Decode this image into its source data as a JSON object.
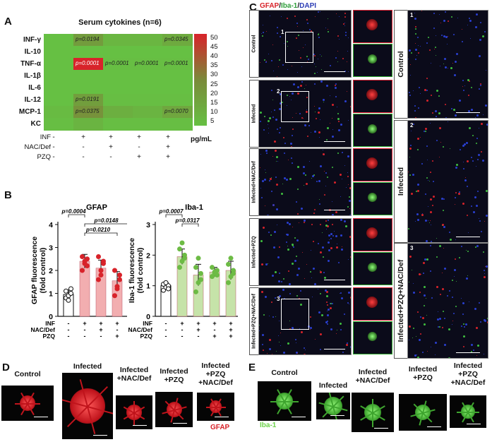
{
  "panel_letters": {
    "a": "A",
    "b": "B",
    "c": "C",
    "d": "D",
    "e": "E"
  },
  "panel_a": {
    "title": "Serum cytokines (n=6)",
    "rows": [
      "INF-γ",
      "IL-10",
      "TNF-α",
      "IL-1β",
      "IL-6",
      "IL-12",
      "MCP-1",
      "KC"
    ],
    "condition_labels": [
      "INF",
      "NAC/Def",
      "PZQ"
    ],
    "condition_values": [
      [
        "-",
        "+",
        "+",
        "+",
        "+"
      ],
      [
        "-",
        "-",
        "+",
        "-",
        "+"
      ],
      [
        "-",
        "-",
        "-",
        "+",
        "+"
      ]
    ],
    "p_values": [
      {
        "row": 0,
        "col": 1,
        "text": "p=0.0194"
      },
      {
        "row": 0,
        "col": 4,
        "text": "p=0.0345"
      },
      {
        "row": 2,
        "col": 1,
        "text": "p=0.0001"
      },
      {
        "row": 2,
        "col": 2,
        "text": "p=0.0001"
      },
      {
        "row": 2,
        "col": 3,
        "text": "p=0.0001"
      },
      {
        "row": 2,
        "col": 4,
        "text": "p=0.0001"
      },
      {
        "row": 5,
        "col": 1,
        "text": "p=0.0191"
      },
      {
        "row": 6,
        "col": 1,
        "text": "p=0.0375"
      },
      {
        "row": 6,
        "col": 4,
        "text": "p=0.0070"
      }
    ],
    "colorbar_ticks": [
      "50",
      "45",
      "40",
      "35",
      "30",
      "25",
      "20",
      "15",
      "10",
      "5"
    ],
    "colorbar_unit": "pg/mL",
    "colors": {
      "low": "#66c043",
      "high": "#d8232a"
    }
  },
  "chart_data": [
    {
      "type": "heatmap",
      "title": "Serum cytokines (n=6)",
      "rows": [
        "INF-γ",
        "IL-10",
        "TNF-α",
        "IL-1β",
        "IL-6",
        "IL-12",
        "MCP-1",
        "KC"
      ],
      "columns": [
        "Control",
        "Infected",
        "Infected+NAC/Def",
        "Infected+PZQ",
        "Infected+PZQ+NAC/Def"
      ],
      "values": [
        [
          5,
          20,
          9,
          9,
          14
        ],
        [
          3,
          3,
          3,
          3,
          3
        ],
        [
          3,
          52,
          6,
          6,
          6
        ],
        [
          3,
          3,
          3,
          3,
          3
        ],
        [
          3,
          3,
          3,
          3,
          3
        ],
        [
          5,
          19,
          6,
          6,
          6
        ],
        [
          7,
          24,
          12,
          10,
          16
        ],
        [
          6,
          10,
          6,
          6,
          6
        ]
      ],
      "colorbar_range": [
        5,
        50
      ],
      "colorbar_unit": "pg/mL"
    },
    {
      "type": "bar",
      "title": "GFAP",
      "ylabel": "GFAP fluorescence\n(fold control)",
      "ylim": [
        0,
        4
      ],
      "yticks": [
        "0",
        "1",
        "2",
        "3",
        "4"
      ],
      "values": [
        0.95,
        2.4,
        2.1,
        1.55,
        1.5
      ],
      "errors": [
        0.2,
        0.3,
        0.35,
        0.4,
        0.3
      ],
      "points": [
        [
          0.8,
          0.9,
          1.0,
          1.1,
          0.7,
          1.2
        ],
        [
          2.0,
          2.3,
          2.5,
          2.6,
          2.4,
          2.2
        ],
        [
          1.6,
          2.0,
          2.4,
          2.6,
          1.8,
          2.3
        ],
        [
          0.9,
          1.3,
          1.6,
          2.0,
          1.2,
          1.8
        ],
        [
          1.2,
          1.4,
          1.6,
          1.8,
          1.3,
          1.5
        ]
      ],
      "comparisons": [
        {
          "from": 0,
          "to": 1,
          "label": "p=0.0004"
        },
        {
          "from": 1,
          "to": 4,
          "label": "p=0.0148"
        },
        {
          "from": 1,
          "to": 3,
          "label": "p=0.0210"
        }
      ],
      "colors": [
        "#ffffff",
        "#f2aeb0",
        "#f2aeb0",
        "#f2aeb0",
        "#f2aeb0"
      ],
      "point_colors": [
        "#111111",
        "#d8232a",
        "#d8232a",
        "#d8232a",
        "#d8232a"
      ]
    },
    {
      "type": "bar",
      "title": "Iba-1",
      "ylabel": "Iba-1 fluorescence\n(fold control)",
      "ylim": [
        0,
        3
      ],
      "yticks": [
        "0",
        "1",
        "2",
        "3"
      ],
      "values": [
        1.0,
        1.95,
        1.35,
        1.45,
        1.5
      ],
      "errors": [
        0.1,
        0.25,
        0.35,
        0.15,
        0.3
      ],
      "points": [
        [
          0.85,
          0.95,
          1.0,
          1.05,
          1.1,
          0.9
        ],
        [
          1.6,
          1.8,
          2.0,
          2.2,
          2.4,
          1.9
        ],
        [
          0.8,
          1.1,
          1.4,
          1.6,
          1.9,
          1.2
        ],
        [
          1.3,
          1.4,
          1.5,
          1.6,
          1.45,
          1.35
        ],
        [
          1.1,
          1.3,
          1.5,
          1.7,
          1.9,
          1.4
        ]
      ],
      "comparisons": [
        {
          "from": 0,
          "to": 1,
          "label": "p=0.0007"
        },
        {
          "from": 1,
          "to": 2,
          "label": "p=0.0317"
        }
      ],
      "colors": [
        "#ffffff",
        "#c6e3a9",
        "#c6e3a9",
        "#c6e3a9",
        "#c6e3a9"
      ],
      "point_colors": [
        "#111111",
        "#6dbb45",
        "#6dbb45",
        "#6dbb45",
        "#6dbb45"
      ]
    }
  ],
  "panel_b": {
    "condition_labels": [
      "INF",
      "NAC/Def",
      "PZQ"
    ],
    "condition_values": [
      [
        "-",
        "+",
        "+",
        "+",
        "+"
      ],
      [
        "-",
        "-",
        "+",
        "-",
        "+"
      ],
      [
        "-",
        "-",
        "-",
        "+",
        "+"
      ]
    ]
  },
  "panel_c": {
    "header": {
      "gfap": "GFAP",
      "iba": "Iba-1",
      "dapi": "DAPI",
      "sep": "/"
    },
    "colors": {
      "gfap": "#d8232a",
      "iba": "#2e9e3a",
      "dapi": "#2c3db5"
    },
    "row_labels": [
      "Control",
      "Infected",
      "Infected+NAC/Def",
      "Infected+PZQ",
      "Infected+PZQ+NAC/Def"
    ],
    "box_numbers": [
      "1",
      "2",
      "3"
    ],
    "zoom_labels": [
      "Control",
      "Infected",
      "Infected+PZQ+NAC/Def"
    ],
    "zoom_numbers": [
      "1",
      "2",
      "3"
    ]
  },
  "panel_d": {
    "captions": [
      "Control",
      "Infected",
      "Infected\n+NAC/Def",
      "Infected\n+PZQ",
      "Infected\n+PZQ\n+NAC/Def"
    ],
    "stain": "GFAP",
    "stain_color": "#d8232a"
  },
  "panel_e": {
    "captions": [
      "Control",
      "Infected",
      "Infected\n+NAC/Def",
      "Infected\n+PZQ",
      "Infected\n+PZQ\n+NAC/Def"
    ],
    "stain": "Iba-1",
    "stain_color": "#6dd34a"
  }
}
